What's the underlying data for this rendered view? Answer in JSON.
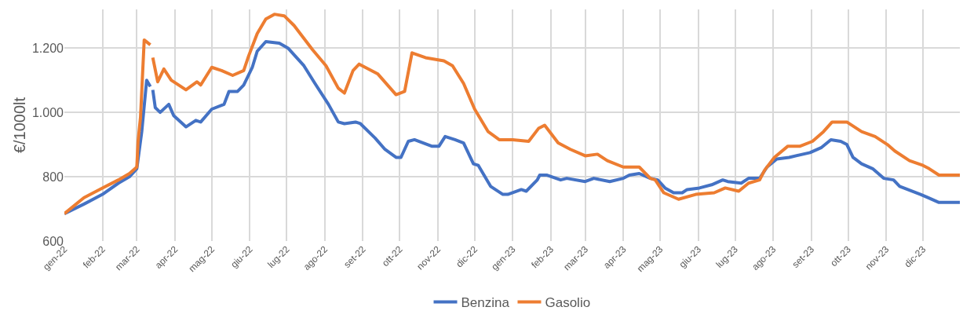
{
  "chart_data": {
    "type": "line",
    "ylabel": "€/1000lt",
    "xlim": [
      "2022-01-01",
      "2023-12-31"
    ],
    "xticks": [
      {
        "value": "2022-01-01",
        "label": "gen-22"
      },
      {
        "value": "2022-02-01",
        "label": "feb-22"
      },
      {
        "value": "2022-03-01",
        "label": "mar-22"
      },
      {
        "value": "2022-04-01",
        "label": "apr-22"
      },
      {
        "value": "2022-05-01",
        "label": "mag-22"
      },
      {
        "value": "2022-06-01",
        "label": "giu-22"
      },
      {
        "value": "2022-07-01",
        "label": "lug-22"
      },
      {
        "value": "2022-08-01",
        "label": "ago-22"
      },
      {
        "value": "2022-09-01",
        "label": "set-22"
      },
      {
        "value": "2022-10-01",
        "label": "ott-22"
      },
      {
        "value": "2022-11-01",
        "label": "nov-22"
      },
      {
        "value": "2022-12-01",
        "label": "dic-22"
      },
      {
        "value": "2023-01-01",
        "label": "gen-23"
      },
      {
        "value": "2023-02-01",
        "label": "feb-23"
      },
      {
        "value": "2023-03-01",
        "label": "mar-23"
      },
      {
        "value": "2023-04-01",
        "label": "apr-23"
      },
      {
        "value": "2023-05-01",
        "label": "mag-23"
      },
      {
        "value": "2023-06-01",
        "label": "giu-23"
      },
      {
        "value": "2023-07-01",
        "label": "lug-23"
      },
      {
        "value": "2023-08-01",
        "label": "ago-23"
      },
      {
        "value": "2023-09-01",
        "label": "set-23"
      },
      {
        "value": "2023-10-01",
        "label": "ott-23"
      },
      {
        "value": "2023-11-01",
        "label": "nov-23"
      },
      {
        "value": "2023-12-01",
        "label": "dic-23"
      }
    ],
    "ylim": [
      600,
      1320
    ],
    "yticks": [
      600,
      800,
      {
        "value": 1000,
        "label": "1.000"
      },
      {
        "value": 1200,
        "label": "1.200"
      }
    ],
    "grid": true,
    "legend": "bottom",
    "marker": "none",
    "line_style": "solid",
    "series": [
      {
        "name": "Benzina",
        "color": "#4472c4",
        "x": [
          "2022-01-01",
          "2022-01-17",
          "2022-02-01",
          "2022-02-14",
          "2022-02-23",
          "2022-03-01",
          "2022-03-05",
          "2022-03-09",
          "2022-03-12",
          "2022-03-13",
          "2022-03-14",
          "2022-03-16",
          "2022-03-20",
          "2022-03-27",
          "2022-03-31",
          "2022-04-10",
          "2022-04-18",
          "2022-04-22",
          "2022-05-01",
          "2022-05-11",
          "2022-05-15",
          "2022-05-22",
          "2022-05-27",
          "2022-06-03",
          "2022-06-07",
          "2022-06-14",
          "2022-06-25",
          "2022-07-02",
          "2022-07-15",
          "2022-07-24",
          "2022-08-04",
          "2022-08-12",
          "2022-08-17",
          "2022-08-26",
          "2022-08-30",
          "2022-09-11",
          "2022-09-19",
          "2022-09-28",
          "2022-10-02",
          "2022-10-08",
          "2022-10-13",
          "2022-10-27",
          "2022-11-02",
          "2022-11-07",
          "2022-11-15",
          "2022-11-22",
          "2022-11-30",
          "2022-12-04",
          "2022-12-14",
          "2022-12-24",
          "2022-12-28",
          "2023-01-08",
          "2023-01-12",
          "2023-01-21",
          "2023-01-23",
          "2023-01-29",
          "2023-02-09",
          "2023-02-14",
          "2023-03-01",
          "2023-03-08",
          "2023-03-21",
          "2023-04-01",
          "2023-04-06",
          "2023-04-14",
          "2023-04-23",
          "2023-04-29",
          "2023-05-05",
          "2023-05-12",
          "2023-05-19",
          "2023-05-23",
          "2023-06-02",
          "2023-06-12",
          "2023-06-21",
          "2023-06-25",
          "2023-07-06",
          "2023-07-12",
          "2023-07-21",
          "2023-07-27",
          "2023-08-04",
          "2023-08-14",
          "2023-08-31",
          "2023-09-09",
          "2023-09-17",
          "2023-09-25",
          "2023-09-30",
          "2023-10-05",
          "2023-10-12",
          "2023-10-21",
          "2023-10-30",
          "2023-11-07",
          "2023-11-12",
          "2023-11-29",
          "2023-12-05",
          "2023-12-14",
          "2023-12-31"
        ],
        "values": [
          685,
          715,
          745,
          780,
          800,
          825,
          940,
          1100,
          1080,
          null,
          1070,
          1015,
          1000,
          1025,
          990,
          955,
          975,
          970,
          1010,
          1025,
          1065,
          1065,
          1085,
          1140,
          1190,
          1220,
          1215,
          1200,
          1145,
          1090,
          1025,
          970,
          965,
          970,
          965,
          920,
          885,
          860,
          860,
          910,
          915,
          895,
          895,
          925,
          915,
          905,
          840,
          835,
          770,
          745,
          745,
          760,
          755,
          790,
          805,
          805,
          790,
          795,
          785,
          795,
          785,
          795,
          805,
          810,
          795,
          790,
          765,
          750,
          750,
          760,
          765,
          775,
          790,
          785,
          780,
          795,
          795,
          830,
          855,
          860,
          875,
          890,
          915,
          910,
          900,
          860,
          840,
          825,
          795,
          790,
          770,
          745,
          735,
          720,
          720
        ]
      },
      {
        "name": "Gasolio",
        "color": "#ed7d31",
        "x": [
          "2022-01-01",
          "2022-01-17",
          "2022-02-01",
          "2022-02-14",
          "2022-02-23",
          "2022-03-01",
          "2022-03-02",
          "2022-03-04",
          "2022-03-07",
          "2022-03-12",
          "2022-03-13",
          "2022-03-14",
          "2022-03-18",
          "2022-03-23",
          "2022-03-29",
          "2022-04-10",
          "2022-04-19",
          "2022-04-22",
          "2022-05-01",
          "2022-05-09",
          "2022-05-18",
          "2022-05-27",
          "2022-05-31",
          "2022-06-07",
          "2022-06-14",
          "2022-06-21",
          "2022-06-29",
          "2022-07-07",
          "2022-07-22",
          "2022-08-02",
          "2022-08-12",
          "2022-08-17",
          "2022-08-24",
          "2022-08-29",
          "2022-09-13",
          "2022-09-28",
          "2022-10-05",
          "2022-10-11",
          "2022-10-22",
          "2022-11-06",
          "2022-11-13",
          "2022-11-22",
          "2022-12-01",
          "2022-12-12",
          "2022-12-21",
          "2023-01-01",
          "2023-01-14",
          "2023-01-22",
          "2023-01-27",
          "2023-02-07",
          "2023-02-17",
          "2023-03-01",
          "2023-03-11",
          "2023-03-19",
          "2023-04-01",
          "2023-04-14",
          "2023-04-23",
          "2023-04-27",
          "2023-05-04",
          "2023-05-16",
          "2023-05-30",
          "2023-06-14",
          "2023-06-23",
          "2023-07-04",
          "2023-07-12",
          "2023-07-21",
          "2023-07-25",
          "2023-08-02",
          "2023-08-13",
          "2023-08-23",
          "2023-09-02",
          "2023-09-11",
          "2023-09-18",
          "2023-09-30",
          "2023-10-12",
          "2023-10-23",
          "2023-11-02",
          "2023-11-08",
          "2023-11-20",
          "2023-12-01",
          "2023-12-06",
          "2023-12-14",
          "2023-12-31"
        ],
        "values": [
          685,
          735,
          765,
          790,
          810,
          830,
          910,
          985,
          1225,
          1210,
          null,
          1170,
          1095,
          1135,
          1100,
          1070,
          1095,
          1085,
          1140,
          1130,
          1115,
          1130,
          1175,
          1245,
          1290,
          1305,
          1300,
          1270,
          1195,
          1145,
          1075,
          1060,
          1130,
          1150,
          1120,
          1055,
          1065,
          1185,
          1170,
          1160,
          1145,
          1090,
          1010,
          940,
          915,
          915,
          910,
          950,
          960,
          905,
          885,
          865,
          870,
          850,
          830,
          830,
          795,
          790,
          750,
          730,
          745,
          750,
          765,
          755,
          780,
          790,
          820,
          860,
          895,
          895,
          910,
          940,
          970,
          970,
          940,
          925,
          900,
          880,
          850,
          835,
          825,
          805,
          805
        ]
      }
    ]
  }
}
